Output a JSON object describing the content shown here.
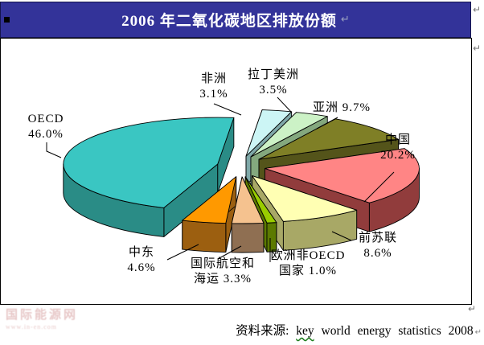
{
  "title": {
    "text": "2006 年二氧化碳地区排放份额"
  },
  "marks": {
    "return_mark": "↵"
  },
  "chart_data": {
    "type": "pie",
    "style": "3d-exploded",
    "title": "2006 年二氧化碳地区排放份额",
    "unit": "percent",
    "direction": "clockwise",
    "start_angle_deg": -84,
    "slices": [
      {
        "id": "africa",
        "name": "非洲",
        "value": 3.1,
        "top_color": "#CCF5F5",
        "side_color": "#7FA8A8",
        "label_lines": [
          "非洲",
          "3.1%"
        ]
      },
      {
        "id": "latin-america",
        "name": "拉丁美洲",
        "value": 3.5,
        "top_color": "#CCF2C6",
        "side_color": "#84A87E",
        "label_lines": [
          "拉丁美洲",
          "3.5%"
        ]
      },
      {
        "id": "asia",
        "name": "亚洲",
        "value": 9.7,
        "top_color": "#7F7F26",
        "side_color": "#54541A",
        "label_lines": [
          "亚洲 9.7%"
        ]
      },
      {
        "id": "china",
        "name": "中国",
        "value": 20.2,
        "top_color": "#FF8585",
        "side_color": "#913C3C",
        "label_lines": [
          "中国",
          "20.2%"
        ]
      },
      {
        "id": "former-soviet-union",
        "name": "前苏联",
        "value": 8.6,
        "top_color": "#FFFFB3",
        "side_color": "#A8A866",
        "label_lines": [
          "前苏联",
          "8.6%"
        ]
      },
      {
        "id": "non-oecd-europe",
        "name": "欧洲非OECD国家",
        "value": 1.0,
        "top_color": "#99CC00",
        "side_color": "#5C7A00",
        "label_lines": [
          "欧洲非OECD",
          "国家 1.0%"
        ]
      },
      {
        "id": "intl-aviation-shipping",
        "name": "国际航空和海运",
        "value": 3.3,
        "top_color": "#F5C28F",
        "side_color": "#8F6F52",
        "label_lines": [
          "国际航空和",
          "海运 3.3%"
        ]
      },
      {
        "id": "middle-east",
        "name": "中东",
        "value": 4.6,
        "top_color": "#FF9900",
        "side_color": "#9C5F10",
        "label_lines": [
          "中东",
          "4.6%"
        ]
      },
      {
        "id": "oecd",
        "name": "OECD",
        "value": 46.0,
        "top_color": "#3AC6C2",
        "side_color": "#2A8C86",
        "label_lines": [
          "OECD",
          "46.0%"
        ]
      }
    ],
    "source": "资料来源: key world energy statistics 2008"
  },
  "source": {
    "prefix": "资料来源:",
    "word1": "key",
    "rest": "world energy statistics 2008"
  },
  "watermark": {
    "line1": "国际能源网",
    "line2": "www.in-en.com"
  }
}
